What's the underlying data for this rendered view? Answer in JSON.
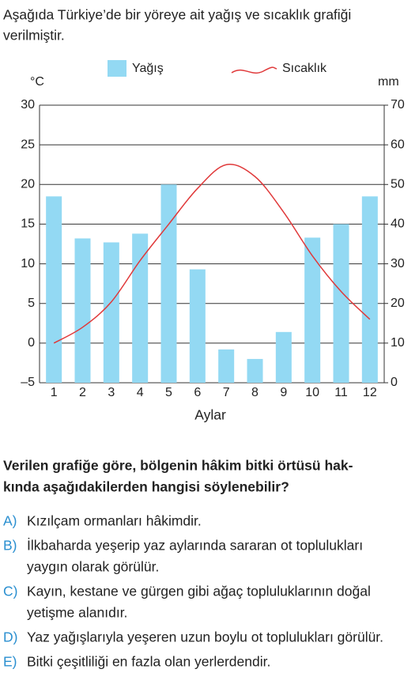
{
  "intro": [
    "Aşağıda Türkiye’de bir yöreye ait yağış ve sıcaklık grafiği",
    "verilmiştir."
  ],
  "chart_data": {
    "type": "bar-line",
    "y_unit": "°C",
    "y2_unit": "mm",
    "xlabel": "Aylar",
    "categories": [
      "1",
      "2",
      "3",
      "4",
      "5",
      "6",
      "7",
      "8",
      "9",
      "10",
      "11",
      "12"
    ],
    "series": [
      {
        "name": "Yağış",
        "type": "bar",
        "axis": "y2",
        "color": "#93d9f3",
        "values": [
          47,
          36.4,
          35.4,
          37.6,
          50,
          28.6,
          8.4,
          6,
          12.8,
          36.6,
          40,
          47
        ]
      },
      {
        "name": "Sıcaklık",
        "type": "line",
        "axis": "y",
        "color": "#e0393a",
        "values": [
          0,
          2,
          5.2,
          10.4,
          15,
          19.5,
          22.5,
          21,
          16.5,
          11,
          6.5,
          3
        ]
      }
    ],
    "ylim": [
      -5,
      30
    ],
    "yticks": [
      {
        "value": -5,
        "label": "–5"
      },
      0,
      5,
      10,
      15,
      20,
      25,
      30
    ],
    "y2lim": [
      0,
      70
    ],
    "y2ticks": [
      0,
      10,
      20,
      30,
      40,
      50,
      60,
      70
    ],
    "grid": true
  },
  "question": [
    "Verilen grafiğe göre, bölgenin hâkim bitki örtüsü hak-",
    "kında aşağıdakilerden hangisi söylenebilir?"
  ],
  "options": [
    {
      "letter": "A)",
      "lines": [
        "Kızılçam ormanları hâkimdir."
      ]
    },
    {
      "letter": "B)",
      "lines": [
        "İlkbaharda yeşerip yaz aylarında sararan ot toplulukları",
        "yaygın olarak görülür."
      ]
    },
    {
      "letter": "C)",
      "lines": [
        "Kayın, kestane ve gürgen gibi ağaç topluluklarının doğal",
        "yetişme alanıdır."
      ]
    },
    {
      "letter": "D)",
      "lines": [
        "Yaz yağışlarıyla yeşeren uzun boylu ot toplulukları görülür."
      ]
    },
    {
      "letter": "E)",
      "lines": [
        "Bitki çeşitliliği en fazla olan yerlerdendir."
      ]
    }
  ]
}
